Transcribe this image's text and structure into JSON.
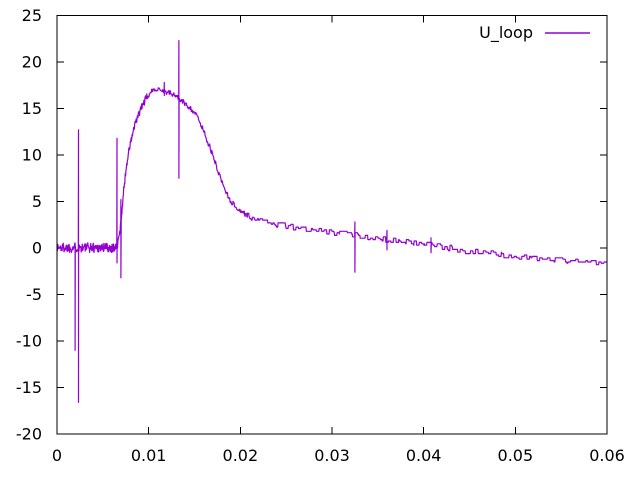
{
  "page": {
    "background_color": "#ffffff",
    "foreground_color": "#000000"
  },
  "chart_data": {
    "type": "line",
    "title": "",
    "xlabel": "",
    "ylabel": "",
    "xlim": [
      0,
      0.06
    ],
    "ylim": [
      -20,
      25
    ],
    "grid": false,
    "xticks": [
      0,
      0.01,
      0.02,
      0.03,
      0.04,
      0.05,
      0.06
    ],
    "xtick_labels": [
      "0",
      "0.01",
      "0.02",
      "0.03",
      "0.04",
      "0.05",
      "0.06"
    ],
    "yticks": [
      -20,
      -15,
      -10,
      -5,
      0,
      5,
      10,
      15,
      20,
      25
    ],
    "ytick_labels": [
      "-20",
      "-15",
      "-10",
      "-5",
      "0",
      "5",
      "10",
      "15",
      "20",
      "25"
    ],
    "legend": {
      "position": "top-right-inside",
      "entries": [
        {
          "label": "U_loop",
          "color": "#9400d3"
        }
      ]
    },
    "series": [
      {
        "name": "U_loop",
        "color": "#9400d3",
        "points": [
          [
            0.0,
            0.05
          ],
          [
            0.0064,
            0.05
          ],
          [
            0.0066,
            0.3
          ],
          [
            0.0069,
            2.0
          ],
          [
            0.0071,
            4.3
          ],
          [
            0.0073,
            6.4
          ],
          [
            0.0075,
            8.2
          ],
          [
            0.0077,
            9.7
          ],
          [
            0.008,
            11.2
          ],
          [
            0.0083,
            12.5
          ],
          [
            0.0086,
            13.5
          ],
          [
            0.009,
            14.6
          ],
          [
            0.0094,
            15.5
          ],
          [
            0.0098,
            16.2
          ],
          [
            0.0102,
            16.7
          ],
          [
            0.0106,
            17.0
          ],
          [
            0.011,
            17.2
          ],
          [
            0.0114,
            17.0
          ],
          [
            0.0119,
            16.8
          ],
          [
            0.0124,
            16.6
          ],
          [
            0.0129,
            16.4
          ],
          [
            0.0133,
            16.1
          ],
          [
            0.0136,
            15.8
          ],
          [
            0.014,
            15.5
          ],
          [
            0.0145,
            15.1
          ],
          [
            0.015,
            14.6
          ],
          [
            0.0155,
            13.7
          ],
          [
            0.016,
            12.6
          ],
          [
            0.0165,
            11.3
          ],
          [
            0.017,
            9.9
          ],
          [
            0.0175,
            8.5
          ],
          [
            0.018,
            7.1
          ],
          [
            0.0185,
            5.9
          ],
          [
            0.019,
            5.0
          ],
          [
            0.0195,
            4.4
          ],
          [
            0.02,
            4.0
          ],
          [
            0.0205,
            3.7
          ],
          [
            0.0212,
            3.3
          ],
          [
            0.022,
            3.0
          ],
          [
            0.024,
            2.6
          ],
          [
            0.026,
            2.2
          ],
          [
            0.028,
            1.85
          ],
          [
            0.03,
            1.7
          ],
          [
            0.032,
            1.45
          ],
          [
            0.0335,
            1.25
          ],
          [
            0.036,
            0.95
          ],
          [
            0.038,
            0.7
          ],
          [
            0.04,
            0.45
          ],
          [
            0.042,
            0.1
          ],
          [
            0.044,
            -0.2
          ],
          [
            0.046,
            -0.45
          ],
          [
            0.048,
            -0.7
          ],
          [
            0.05,
            -0.9
          ],
          [
            0.052,
            -1.05
          ],
          [
            0.054,
            -1.2
          ],
          [
            0.056,
            -1.35
          ],
          [
            0.058,
            -1.5
          ],
          [
            0.06,
            -1.6
          ]
        ],
        "spikes": [
          {
            "x": 0.00197,
            "from": 0.5,
            "to": -11.0
          },
          {
            "x": 0.00235,
            "from": 12.7,
            "to": -16.6
          },
          {
            "x": 0.00655,
            "from": 11.8,
            "to": -1.6
          },
          {
            "x": 0.00697,
            "from": 5.2,
            "to": -3.2
          },
          {
            "x": 0.0117,
            "from": 17.8,
            "to": 16.4
          },
          {
            "x": 0.0133,
            "from": 22.3,
            "to": 7.5
          },
          {
            "x": 0.0325,
            "from": 2.8,
            "to": -2.6
          },
          {
            "x": 0.036,
            "from": 1.9,
            "to": -0.2
          },
          {
            "x": 0.0408,
            "from": 1.1,
            "to": -0.5
          }
        ],
        "noise_segments": [
          {
            "x_end": 0.0064,
            "amplitude": 0.55,
            "hold": 1,
            "quantize": 0
          },
          {
            "x_end": 0.0098,
            "amplitude": 0.4,
            "hold": 1,
            "quantize": 0
          },
          {
            "x_end": 0.021,
            "amplitude": 0.28,
            "hold": 2,
            "quantize": 0
          },
          {
            "x_end": 0.06,
            "amplitude": 0.3,
            "hold": 7,
            "quantize": 0.15
          }
        ]
      }
    ]
  }
}
